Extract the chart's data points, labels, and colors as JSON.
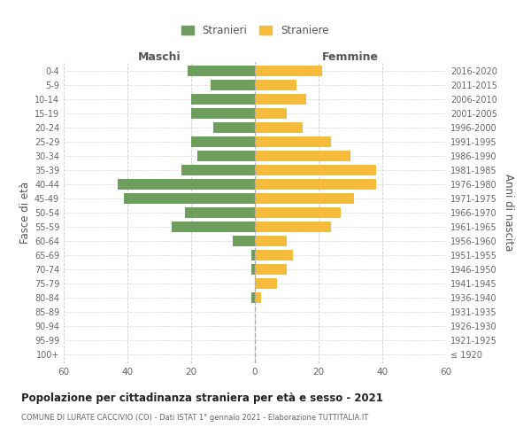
{
  "age_groups": [
    "100+",
    "95-99",
    "90-94",
    "85-89",
    "80-84",
    "75-79",
    "70-74",
    "65-69",
    "60-64",
    "55-59",
    "50-54",
    "45-49",
    "40-44",
    "35-39",
    "30-34",
    "25-29",
    "20-24",
    "15-19",
    "10-14",
    "5-9",
    "0-4"
  ],
  "birth_years": [
    "≤ 1920",
    "1921-1925",
    "1926-1930",
    "1931-1935",
    "1936-1940",
    "1941-1945",
    "1946-1950",
    "1951-1955",
    "1956-1960",
    "1961-1965",
    "1966-1970",
    "1971-1975",
    "1976-1980",
    "1981-1985",
    "1986-1990",
    "1991-1995",
    "1996-2000",
    "2001-2005",
    "2006-2010",
    "2011-2015",
    "2016-2020"
  ],
  "maschi": [
    0,
    0,
    0,
    0,
    1,
    0,
    1,
    1,
    7,
    26,
    22,
    41,
    43,
    23,
    18,
    20,
    13,
    20,
    20,
    14,
    21
  ],
  "femmine": [
    0,
    0,
    0,
    0,
    2,
    7,
    10,
    12,
    10,
    24,
    27,
    31,
    38,
    38,
    30,
    24,
    15,
    10,
    16,
    13,
    21
  ],
  "maschi_color": "#6e9e5e",
  "femmine_color": "#f5bb3b",
  "bar_height": 0.75,
  "xlim": 60,
  "title": "Popolazione per cittadinanza straniera per età e sesso - 2021",
  "subtitle": "COMUNE DI LURATE CACCIVIO (CO) - Dati ISTAT 1° gennaio 2021 - Elaborazione TUTTITALIA.IT",
  "ylabel_left": "Fasce di età",
  "ylabel_right": "Anni di nascita",
  "legend_maschi": "Stranieri",
  "legend_femmine": "Straniere",
  "header_maschi": "Maschi",
  "header_femmine": "Femmine",
  "background_color": "#ffffff",
  "grid_color": "#cccccc"
}
